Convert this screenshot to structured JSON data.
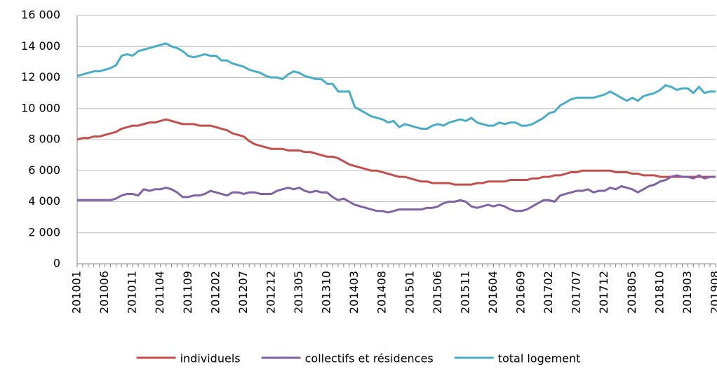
{
  "chart_data": {
    "type": "line",
    "categories": [
      "201001",
      null,
      null,
      null,
      null,
      "201006",
      null,
      null,
      null,
      null,
      "201011",
      null,
      null,
      null,
      null,
      "201104",
      null,
      null,
      null,
      null,
      "201109",
      null,
      null,
      null,
      null,
      "201202",
      null,
      null,
      null,
      null,
      "201207",
      null,
      null,
      null,
      null,
      "201212",
      null,
      null,
      null,
      null,
      "201305",
      null,
      null,
      null,
      null,
      "201310",
      null,
      null,
      null,
      null,
      "201403",
      null,
      null,
      null,
      null,
      "201408",
      null,
      null,
      null,
      null,
      "201501",
      null,
      null,
      null,
      null,
      "201506",
      null,
      null,
      null,
      null,
      "201511",
      null,
      null,
      null,
      null,
      "201604",
      null,
      null,
      null,
      null,
      "201609",
      null,
      null,
      null,
      null,
      "201702",
      null,
      null,
      null,
      null,
      "201707",
      null,
      null,
      null,
      null,
      "201712",
      null,
      null,
      null,
      null,
      "201805",
      null,
      null,
      null,
      null,
      "201810",
      null,
      null,
      null,
      null,
      "201903",
      null,
      null,
      null,
      null,
      "201908"
    ],
    "series": [
      {
        "name": "individuels",
        "color": "#c0504d",
        "values": [
          8000,
          8100,
          8100,
          8200,
          8200,
          8300,
          8400,
          8500,
          8700,
          8800,
          8900,
          8900,
          9000,
          9100,
          9100,
          9200,
          9300,
          9200,
          9100,
          9000,
          9000,
          9000,
          8900,
          8900,
          8900,
          8800,
          8700,
          8600,
          8400,
          8300,
          8200,
          7900,
          7700,
          7600,
          7500,
          7400,
          7400,
          7400,
          7300,
          7300,
          7300,
          7200,
          7200,
          7100,
          7000,
          6900,
          6900,
          6800,
          6600,
          6400,
          6300,
          6200,
          6100,
          6000,
          6000,
          5900,
          5800,
          5700,
          5600,
          5600,
          5500,
          5400,
          5300,
          5300,
          5200,
          5200,
          5200,
          5200,
          5100,
          5100,
          5100,
          5100,
          5200,
          5200,
          5300,
          5300,
          5300,
          5300,
          5400,
          5400,
          5400,
          5400,
          5500,
          5500,
          5600,
          5600,
          5700,
          5700,
          5800,
          5900,
          5900,
          6000,
          6000,
          6000,
          6000,
          6000,
          6000,
          5900,
          5900,
          5900,
          5800,
          5800,
          5700,
          5700,
          5700,
          5600,
          5600,
          5600,
          5600,
          5600,
          5600,
          5600,
          5600,
          5600,
          5600,
          5600
        ]
      },
      {
        "name": "collectifs et résidences",
        "color": "#8064a2",
        "values": [
          4100,
          4100,
          4100,
          4100,
          4100,
          4100,
          4100,
          4200,
          4400,
          4500,
          4500,
          4400,
          4800,
          4700,
          4800,
          4800,
          4900,
          4800,
          4600,
          4300,
          4300,
          4400,
          4400,
          4500,
          4700,
          4600,
          4500,
          4400,
          4600,
          4600,
          4500,
          4600,
          4600,
          4500,
          4500,
          4500,
          4700,
          4800,
          4900,
          4800,
          4900,
          4700,
          4600,
          4700,
          4600,
          4600,
          4300,
          4100,
          4200,
          4000,
          3800,
          3700,
          3600,
          3500,
          3400,
          3400,
          3300,
          3400,
          3500,
          3500,
          3500,
          3500,
          3500,
          3600,
          3600,
          3700,
          3900,
          4000,
          4000,
          4100,
          4000,
          3700,
          3600,
          3700,
          3800,
          3700,
          3800,
          3700,
          3500,
          3400,
          3400,
          3500,
          3700,
          3900,
          4100,
          4100,
          4000,
          4400,
          4500,
          4600,
          4700,
          4700,
          4800,
          4600,
          4700,
          4700,
          4900,
          4800,
          5000,
          4900,
          4800,
          4600,
          4800,
          5000,
          5100,
          5300,
          5400,
          5600,
          5700,
          5600,
          5600,
          5500,
          5700,
          5500,
          5600,
          5600
        ]
      },
      {
        "name": "total logement",
        "color": "#4bacc6",
        "values": [
          12100,
          12200,
          12300,
          12400,
          12400,
          12500,
          12600,
          12800,
          13400,
          13500,
          13400,
          13700,
          13800,
          13900,
          14000,
          14100,
          14200,
          14000,
          13900,
          13700,
          13400,
          13300,
          13400,
          13500,
          13400,
          13400,
          13100,
          13100,
          12900,
          12800,
          12700,
          12500,
          12400,
          12300,
          12100,
          12000,
          12000,
          11900,
          12200,
          12400,
          12300,
          12100,
          12000,
          11900,
          11900,
          11600,
          11600,
          11100,
          11100,
          11100,
          10100,
          9900,
          9700,
          9500,
          9400,
          9300,
          9100,
          9200,
          8800,
          9000,
          8900,
          8800,
          8700,
          8700,
          8900,
          9000,
          8900,
          9100,
          9200,
          9300,
          9200,
          9400,
          9100,
          9000,
          8900,
          8900,
          9100,
          9000,
          9100,
          9100,
          8900,
          8900,
          9000,
          9200,
          9400,
          9700,
          9800,
          10200,
          10400,
          10600,
          10700,
          10700,
          10700,
          10700,
          10800,
          10900,
          11100,
          10900,
          10700,
          10500,
          10700,
          10500,
          10800,
          10900,
          11000,
          11200,
          11500,
          11400,
          11200,
          11300,
          11300,
          11000,
          11400,
          11000,
          11100,
          11100
        ]
      }
    ],
    "ylim": [
      0,
      16000
    ],
    "yticks": [
      0,
      {
        "value": 2000,
        "label": "2 000"
      },
      {
        "value": 4000,
        "label": "4 000"
      },
      {
        "value": 6000,
        "label": "6 000"
      },
      {
        "value": 8000,
        "label": "8 000"
      },
      {
        "value": 10000,
        "label": "10 000"
      },
      {
        "value": 12000,
        "label": "12 000"
      },
      {
        "value": 14000,
        "label": "14 000"
      },
      {
        "value": 16000,
        "label": "16 000"
      }
    ],
    "grid": true,
    "legend": "bottom"
  }
}
